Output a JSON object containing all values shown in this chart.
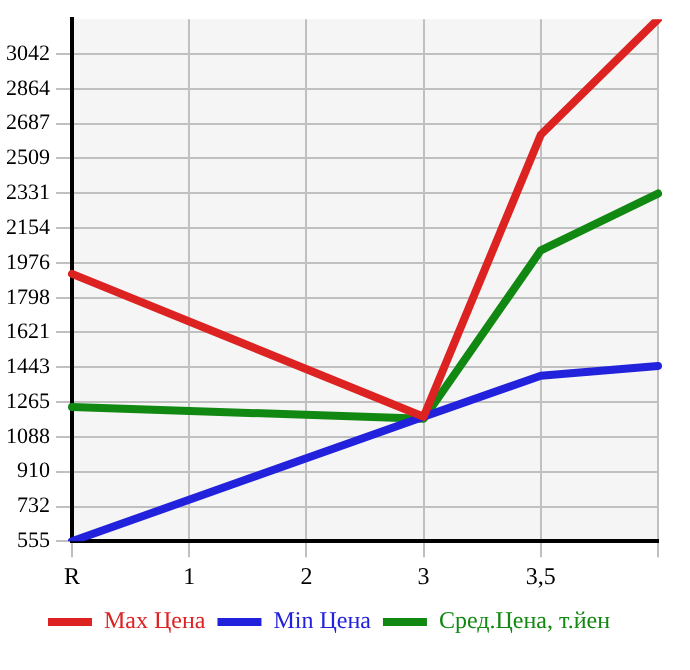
{
  "chart_data": {
    "type": "line",
    "categories": [
      "R",
      "1",
      "2",
      "3",
      "3,5",
      null
    ],
    "series": [
      {
        "name": "Max Цена",
        "color": "#dd2222",
        "values": [
          1920,
          null,
          null,
          1190,
          2630,
          3220
        ]
      },
      {
        "name": "Min Цена",
        "color": "#2222dd",
        "values": [
          555,
          null,
          null,
          1190,
          1400,
          1450
        ]
      },
      {
        "name": "Сред.Цена, т.йен",
        "color": "#118811",
        "values": [
          1240,
          null,
          null,
          1180,
          2040,
          2330
        ]
      }
    ],
    "ylim": [
      555,
      3220
    ],
    "yticks": [
      555,
      732,
      910,
      1088,
      1265,
      1443,
      1621,
      1798,
      1976,
      2154,
      2331,
      2509,
      2687,
      2864,
      3042
    ],
    "grid": true,
    "legend": "bottom",
    "marker": "none",
    "line_style": "solid"
  }
}
